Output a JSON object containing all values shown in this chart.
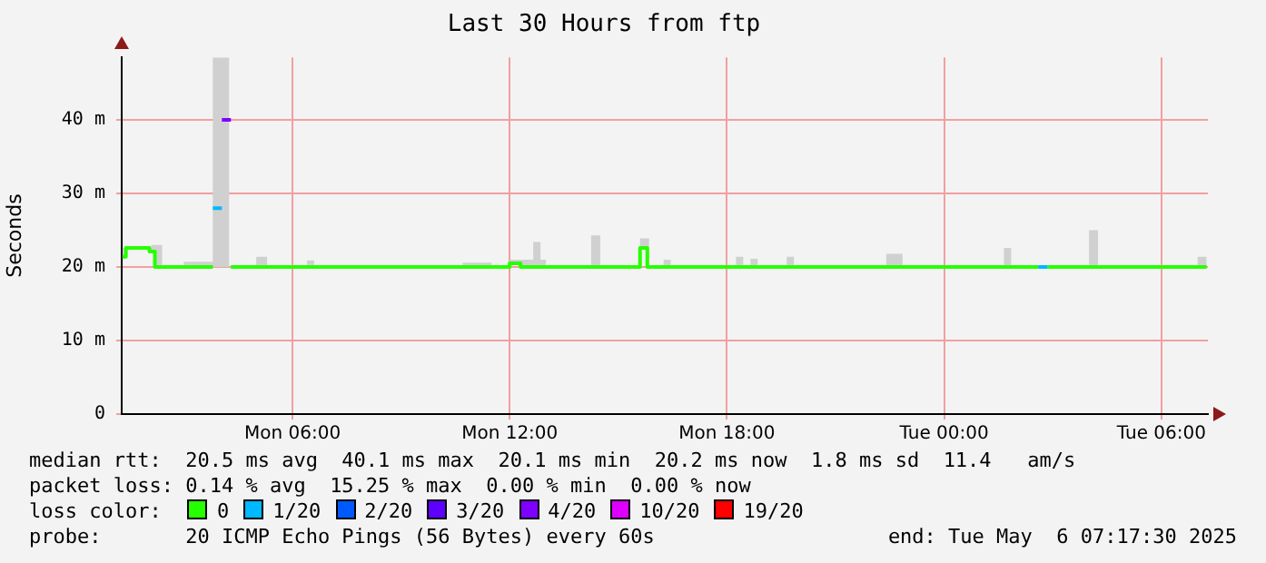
{
  "chart_data": {
    "type": "step",
    "title": "Last 30 Hours from ftp",
    "ylabel": "Seconds",
    "legend_title": "loss color:",
    "xlim": [
      "2025-05-05T01:17",
      "2025-05-06T07:17"
    ],
    "xticks": [
      {
        "value": "2025-05-05T06:00",
        "label": "Mon 06:00"
      },
      {
        "value": "2025-05-05T12:00",
        "label": "Mon 12:00"
      },
      {
        "value": "2025-05-05T18:00",
        "label": "Mon 18:00"
      },
      {
        "value": "2025-05-06T00:00",
        "label": "Tue 00:00"
      },
      {
        "value": "2025-05-06T06:00",
        "label": "Tue 06:00"
      }
    ],
    "ylim": [
      0,
      48.5
    ],
    "yticks": [
      0,
      {
        "value": 10,
        "label": "10 m"
      },
      {
        "value": 20,
        "label": "20 m"
      },
      {
        "value": 30,
        "label": "30 m"
      },
      {
        "value": 40,
        "label": "40 m"
      }
    ],
    "grid": true,
    "legend": "bottom",
    "series": [
      {
        "type": "area",
        "color": "#d0d0d0",
        "x": [
          "2025-05-05T01:18",
          "2025-05-05T02:06",
          "2025-05-05T02:24",
          "2025-05-05T03:00",
          "2025-05-05T03:48",
          "2025-05-05T04:15",
          "2025-05-05T05:00",
          "2025-05-05T05:18",
          "2025-05-05T06:24",
          "2025-05-05T06:36",
          "2025-05-05T10:42",
          "2025-05-05T11:30",
          "2025-05-05T12:00",
          "2025-05-05T12:18",
          "2025-05-05T12:39",
          "2025-05-05T12:51",
          "2025-05-05T13:00",
          "2025-05-05T14:15",
          "2025-05-05T14:30",
          "2025-05-05T15:36",
          "2025-05-05T15:51",
          "2025-05-05T16:15",
          "2025-05-05T16:27",
          "2025-05-05T18:15",
          "2025-05-05T18:27",
          "2025-05-05T18:39",
          "2025-05-05T18:51",
          "2025-05-05T19:39",
          "2025-05-05T19:51",
          "2025-05-05T22:24",
          "2025-05-05T22:51",
          "2025-05-06T01:39",
          "2025-05-06T01:51",
          "2025-05-06T04:00",
          "2025-05-06T04:15",
          "2025-05-06T07:00",
          "2025-05-06T07:15"
        ],
        "values": [
          22.6,
          23.0,
          20.0,
          20.7,
          48.5,
          20.0,
          21.4,
          20.0,
          20.9,
          20.0,
          20.6,
          20.0,
          21.0,
          21.0,
          23.4,
          21.0,
          20.0,
          24.3,
          20.0,
          23.9,
          20.0,
          21.0,
          20.0,
          21.4,
          20.0,
          21.1,
          20.0,
          21.4,
          20.0,
          21.8,
          20.0,
          22.6,
          20.0,
          25.0,
          20.0,
          21.4,
          21.4
        ]
      },
      {
        "name": "0",
        "color": "#26ff00",
        "x": [
          "2025-05-05T01:18",
          "2025-05-05T01:24",
          "2025-05-05T02:03",
          "2025-05-05T02:12",
          "2025-05-05T03:48",
          "2025-05-05T03:49",
          "2025-05-05T04:18",
          "2025-05-05T12:00",
          "2025-05-05T12:18",
          "2025-05-05T15:36",
          "2025-05-05T15:48",
          "2025-05-06T02:36",
          "2025-05-06T02:37",
          "2025-05-06T02:51",
          "2025-05-06T07:15"
        ],
        "values": [
          21.4,
          22.6,
          22.1,
          20.0,
          20.0,
          null,
          20.0,
          20.5,
          20.0,
          22.6,
          20.0,
          20.0,
          null,
          20.0,
          20.0
        ]
      },
      {
        "name": "1/20",
        "color": "#00b8ff",
        "x": [
          "2025-05-05T03:48",
          "2025-05-05T04:03",
          "2025-05-05T04:04",
          "2025-05-06T02:36",
          "2025-05-06T02:51"
        ],
        "values": [
          28.0,
          28.0,
          null,
          20.0,
          20.0
        ]
      },
      {
        "name": "2/20",
        "color": "#0059ff"
      },
      {
        "name": "3/20",
        "color": "#5e00ff"
      },
      {
        "name": "4/20",
        "color": "#7e00ff",
        "x": [
          "2025-05-05T04:03",
          "2025-05-05T04:18"
        ],
        "values": [
          40.0,
          40.0
        ]
      },
      {
        "name": "10/20",
        "color": "#dd00ff"
      },
      {
        "name": "19/20",
        "color": "#ff0000"
      }
    ],
    "annotations": [
      "median rtt:  20.5 ms avg  40.1 ms max  20.1 ms min  20.2 ms now  1.8 ms sd  11.4   am/s",
      "packet loss: 0.14 % avg  15.25 % max  0.00 % min  0.00 % now",
      "probe:       20 ICMP Echo Pings (56 Bytes) every 60s",
      "end: Tue May  6 07:17:30 2025"
    ]
  }
}
